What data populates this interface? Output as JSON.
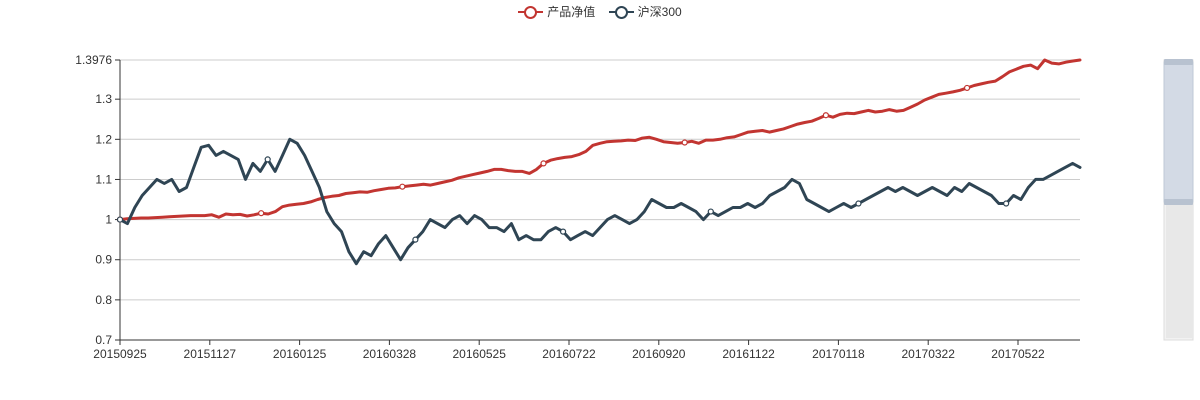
{
  "colors": {
    "series0": "#c23531",
    "series1": "#2f4554",
    "axis": "#333333",
    "grid": "#cccccc",
    "text": "#333333"
  },
  "legend": [
    {
      "label": "产品净值",
      "color": "#c23531"
    },
    {
      "label": "沪深300",
      "color": "#2f4554"
    }
  ],
  "chart_data": {
    "type": "line",
    "x_tick_labels": [
      "20150925",
      "20151127",
      "20160125",
      "20160328",
      "20160525",
      "20160722",
      "20160920",
      "20161122",
      "20170118",
      "20170322",
      "20170522"
    ],
    "y_tick_labels": [
      "0.7",
      "0.8",
      "0.9",
      "1",
      "1.1",
      "1.2",
      "1.3",
      "1.3976"
    ],
    "ylim": [
      0.7,
      1.3976
    ],
    "grid": true,
    "legend_position": "top-center",
    "series": [
      {
        "name": "产品净值",
        "values": [
          1.0,
          1.002,
          1.003,
          1.004,
          1.004,
          1.005,
          1.006,
          1.007,
          1.008,
          1.009,
          1.01,
          1.01,
          1.01,
          1.012,
          1.006,
          1.014,
          1.012,
          1.013,
          1.009,
          1.012,
          1.016,
          1.014,
          1.02,
          1.032,
          1.036,
          1.038,
          1.04,
          1.044,
          1.05,
          1.055,
          1.058,
          1.06,
          1.065,
          1.067,
          1.069,
          1.068,
          1.072,
          1.075,
          1.078,
          1.079,
          1.082,
          1.084,
          1.086,
          1.088,
          1.086,
          1.09,
          1.094,
          1.098,
          1.104,
          1.108,
          1.112,
          1.116,
          1.12,
          1.125,
          1.125,
          1.122,
          1.12,
          1.12,
          1.115,
          1.125,
          1.14,
          1.148,
          1.152,
          1.155,
          1.157,
          1.162,
          1.17,
          1.185,
          1.19,
          1.194,
          1.195,
          1.196,
          1.198,
          1.197,
          1.203,
          1.205,
          1.2,
          1.194,
          1.192,
          1.19,
          1.192,
          1.195,
          1.19,
          1.198,
          1.198,
          1.2,
          1.204,
          1.206,
          1.212,
          1.218,
          1.22,
          1.222,
          1.218,
          1.222,
          1.226,
          1.232,
          1.238,
          1.242,
          1.245,
          1.252,
          1.26,
          1.255,
          1.262,
          1.265,
          1.264,
          1.268,
          1.272,
          1.268,
          1.27,
          1.274,
          1.27,
          1.272,
          1.28,
          1.288,
          1.298,
          1.305,
          1.312,
          1.315,
          1.318,
          1.322,
          1.328,
          1.334,
          1.338,
          1.342,
          1.345,
          1.356,
          1.368,
          1.375,
          1.382,
          1.385,
          1.376,
          1.3976,
          1.39,
          1.388,
          1.392,
          1.395,
          1.3976
        ]
      },
      {
        "name": "沪深300",
        "values": [
          1.0,
          0.99,
          1.03,
          1.06,
          1.08,
          1.1,
          1.09,
          1.1,
          1.07,
          1.08,
          1.13,
          1.18,
          1.185,
          1.16,
          1.17,
          1.16,
          1.15,
          1.1,
          1.14,
          1.12,
          1.15,
          1.12,
          1.16,
          1.2,
          1.19,
          1.16,
          1.12,
          1.08,
          1.02,
          0.99,
          0.97,
          0.92,
          0.89,
          0.92,
          0.91,
          0.94,
          0.96,
          0.93,
          0.9,
          0.93,
          0.95,
          0.97,
          1.0,
          0.99,
          0.98,
          1.0,
          1.01,
          0.99,
          1.01,
          1.0,
          0.98,
          0.98,
          0.97,
          0.99,
          0.95,
          0.96,
          0.95,
          0.95,
          0.97,
          0.98,
          0.97,
          0.95,
          0.96,
          0.97,
          0.96,
          0.98,
          1.0,
          1.01,
          1.0,
          0.99,
          1.0,
          1.02,
          1.05,
          1.04,
          1.03,
          1.03,
          1.04,
          1.03,
          1.02,
          1.0,
          1.02,
          1.01,
          1.02,
          1.03,
          1.03,
          1.04,
          1.03,
          1.04,
          1.06,
          1.07,
          1.08,
          1.1,
          1.09,
          1.05,
          1.04,
          1.03,
          1.02,
          1.03,
          1.04,
          1.03,
          1.04,
          1.05,
          1.06,
          1.07,
          1.08,
          1.07,
          1.08,
          1.07,
          1.06,
          1.07,
          1.08,
          1.07,
          1.06,
          1.08,
          1.07,
          1.09,
          1.08,
          1.07,
          1.06,
          1.04,
          1.04,
          1.06,
          1.05,
          1.08,
          1.1,
          1.1,
          1.11,
          1.12,
          1.13,
          1.14,
          1.13
        ]
      }
    ]
  }
}
